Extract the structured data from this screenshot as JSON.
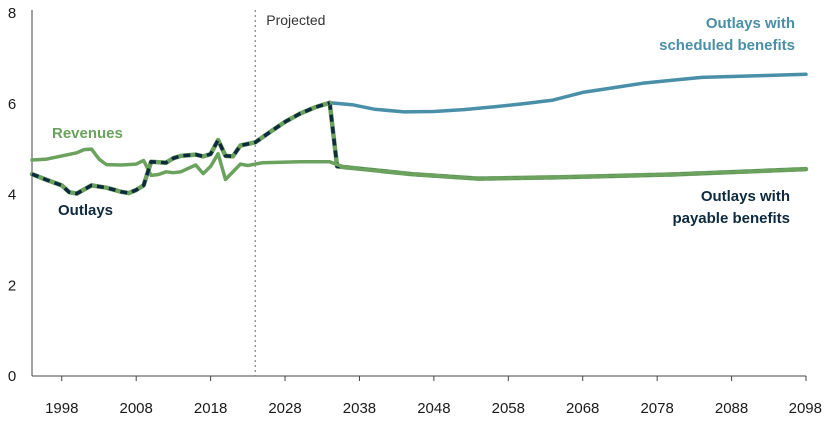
{
  "chart_data": {
    "type": "line",
    "xlim": [
      1994,
      2098
    ],
    "ylim": [
      0,
      8
    ],
    "x_ticks": [
      1998,
      2008,
      2018,
      2028,
      2038,
      2048,
      2058,
      2068,
      2078,
      2088,
      2098
    ],
    "y_ticks": [
      0,
      2,
      4,
      6,
      8
    ],
    "grid": false,
    "projected_start": 2024,
    "projected_label": "Projected",
    "series": [
      {
        "name": "Revenues",
        "color": "#6aa25e",
        "label_lines": [
          "Revenues"
        ],
        "points": [
          [
            1994,
            4.76
          ],
          [
            1996,
            4.78
          ],
          [
            1998,
            4.85
          ],
          [
            2000,
            4.92
          ],
          [
            2001,
            4.99
          ],
          [
            2002,
            5.0
          ],
          [
            2003,
            4.78
          ],
          [
            2004,
            4.66
          ],
          [
            2006,
            4.65
          ],
          [
            2008,
            4.67
          ],
          [
            2009,
            4.75
          ],
          [
            2010,
            4.42
          ],
          [
            2011,
            4.44
          ],
          [
            2012,
            4.5
          ],
          [
            2013,
            4.48
          ],
          [
            2014,
            4.5
          ],
          [
            2016,
            4.65
          ],
          [
            2017,
            4.46
          ],
          [
            2018,
            4.62
          ],
          [
            2019,
            4.9
          ],
          [
            2020,
            4.33
          ],
          [
            2022,
            4.67
          ],
          [
            2023,
            4.64
          ],
          [
            2025,
            4.7
          ],
          [
            2030,
            4.72
          ],
          [
            2034,
            4.72
          ],
          [
            2036,
            4.6
          ],
          [
            2045,
            4.45
          ],
          [
            2054,
            4.35
          ],
          [
            2065,
            4.38
          ],
          [
            2080,
            4.44
          ],
          [
            2098,
            4.56
          ]
        ]
      },
      {
        "name": "Outlays",
        "color": "#0d2a3e",
        "label_lines": [
          "Outlays"
        ],
        "points": [
          [
            1994,
            4.45
          ],
          [
            1996,
            4.32
          ],
          [
            1998,
            4.2
          ],
          [
            1999,
            4.05
          ],
          [
            2000,
            4.02
          ],
          [
            2002,
            4.2
          ],
          [
            2004,
            4.15
          ],
          [
            2006,
            4.06
          ],
          [
            2007,
            4.03
          ],
          [
            2008,
            4.1
          ],
          [
            2009,
            4.2
          ],
          [
            2010,
            4.72
          ],
          [
            2012,
            4.7
          ],
          [
            2013,
            4.8
          ],
          [
            2014,
            4.85
          ],
          [
            2016,
            4.88
          ],
          [
            2017,
            4.84
          ],
          [
            2018,
            4.89
          ],
          [
            2019,
            5.2
          ],
          [
            2020,
            4.85
          ],
          [
            2021,
            4.84
          ],
          [
            2022,
            5.08
          ],
          [
            2024,
            5.15
          ],
          [
            2026,
            5.38
          ],
          [
            2028,
            5.6
          ],
          [
            2030,
            5.78
          ],
          [
            2032,
            5.92
          ],
          [
            2034,
            6.02
          ]
        ]
      },
      {
        "name": "Outlays with scheduled benefits",
        "color": "#4a8fa8",
        "label_lines": [
          "Outlays with",
          "scheduled benefits"
        ],
        "points": [
          [
            2034,
            6.02
          ],
          [
            2037,
            5.98
          ],
          [
            2040,
            5.88
          ],
          [
            2044,
            5.82
          ],
          [
            2048,
            5.83
          ],
          [
            2052,
            5.87
          ],
          [
            2056,
            5.93
          ],
          [
            2060,
            6.0
          ],
          [
            2064,
            6.08
          ],
          [
            2068,
            6.25
          ],
          [
            2072,
            6.35
          ],
          [
            2076,
            6.45
          ],
          [
            2080,
            6.52
          ],
          [
            2084,
            6.58
          ],
          [
            2088,
            6.6
          ],
          [
            2092,
            6.62
          ],
          [
            2098,
            6.65
          ]
        ]
      },
      {
        "name": "Outlays with payable benefits",
        "color": "#0d2a3e",
        "label_lines": [
          "Outlays with",
          "payable benefits"
        ],
        "points": [
          [
            2034,
            6.02
          ],
          [
            2035,
            4.62
          ],
          [
            2045,
            4.45
          ],
          [
            2054,
            4.35
          ],
          [
            2065,
            4.38
          ],
          [
            2080,
            4.44
          ],
          [
            2098,
            4.56
          ]
        ]
      }
    ]
  }
}
